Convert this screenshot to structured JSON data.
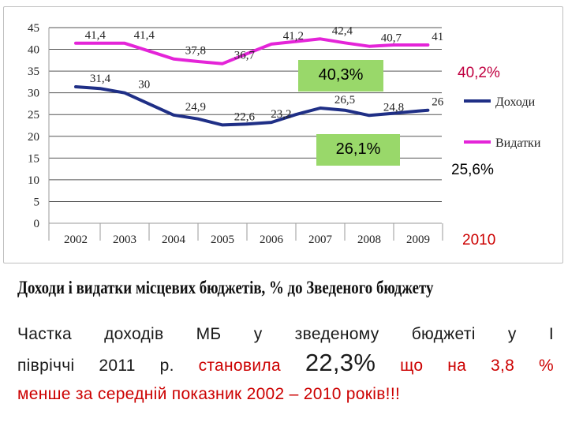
{
  "chart_data": {
    "type": "line",
    "categories": [
      "2002",
      "2003",
      "2004",
      "2005",
      "2006",
      "2007",
      "2008",
      "2009"
    ],
    "x_positions": [
      0,
      1,
      2,
      3,
      4,
      5,
      6,
      7
    ],
    "ylim": [
      0,
      45
    ],
    "yticks": [
      0,
      5,
      10,
      15,
      20,
      25,
      30,
      35,
      40,
      45
    ],
    "grid": true,
    "legend_position": "right",
    "series": [
      {
        "name": "Доходи",
        "color": "#1f2f86",
        "x": [
          0,
          0.5,
          1,
          2,
          2.5,
          3,
          3.5,
          4,
          4.5,
          5,
          5.5,
          6,
          6.5,
          7,
          7.2
        ],
        "values": [
          31.4,
          31,
          30,
          24.9,
          24,
          22.6,
          22.8,
          23.2,
          25,
          26.5,
          26,
          24.8,
          25.3,
          25.8,
          26
        ],
        "labels": [
          {
            "x": 0.5,
            "y": 31.4,
            "text": "31,4"
          },
          {
            "x": 1.4,
            "y": 30,
            "text": "30"
          },
          {
            "x": 2.45,
            "y": 24.9,
            "text": "24,9"
          },
          {
            "x": 3.45,
            "y": 22.6,
            "text": "22,6"
          },
          {
            "x": 4.2,
            "y": 23.2,
            "text": "23,2"
          },
          {
            "x": 5.5,
            "y": 26.5,
            "text": "26,5"
          },
          {
            "x": 6.5,
            "y": 24.8,
            "text": "24,8"
          },
          {
            "x": 7.4,
            "y": 26,
            "text": "26"
          }
        ]
      },
      {
        "name": "Видатки",
        "color": "#e424d8",
        "x": [
          0,
          0.5,
          1,
          2,
          2.5,
          3,
          3.5,
          4,
          4.5,
          5,
          5.5,
          6,
          6.5,
          7,
          7.2
        ],
        "values": [
          41.4,
          41.4,
          41.4,
          37.8,
          37.2,
          36.7,
          39,
          41.2,
          41.8,
          42.4,
          41.5,
          40.7,
          41,
          41,
          41
        ],
        "labels": [
          {
            "x": 0.4,
            "y": 41.4,
            "text": "41,4"
          },
          {
            "x": 1.4,
            "y": 41.4,
            "text": "41,4"
          },
          {
            "x": 2.45,
            "y": 37.8,
            "text": "37,8"
          },
          {
            "x": 3.45,
            "y": 36.7,
            "text": "36,7"
          },
          {
            "x": 4.45,
            "y": 41.2,
            "text": "41,2"
          },
          {
            "x": 5.45,
            "y": 42.4,
            "text": "42,4"
          },
          {
            "x": 6.45,
            "y": 40.7,
            "text": "40,7"
          },
          {
            "x": 7.4,
            "y": 41,
            "text": "41"
          }
        ]
      }
    ],
    "annotations": {
      "budget_2010_share": "40,3%",
      "revenue_2010_share": "26,1%",
      "expenditure_2010_value": "40,2%",
      "revenue_2010_value": "25,6%",
      "extra_year_label": "2010"
    },
    "colors": {
      "callout_fill": "#99d86a",
      "accent_red": "#cc0000",
      "axis": "#9a9a9a",
      "grid": "#555555"
    }
  },
  "caption": "Доходи і видатки місцевих бюджетів, % до Зведеного бюджету",
  "paragraph": {
    "line1": "Частка доходів МБ у зведеному бюджеті у І",
    "line2_prefix": "півріччі 2011 р.",
    "line2_highlight": "становила",
    "line2_value": "22,3%",
    "line2_suffix": "що на 3,8 %",
    "line3": "менше за середній показник 2002 – 2010 років!!!"
  }
}
